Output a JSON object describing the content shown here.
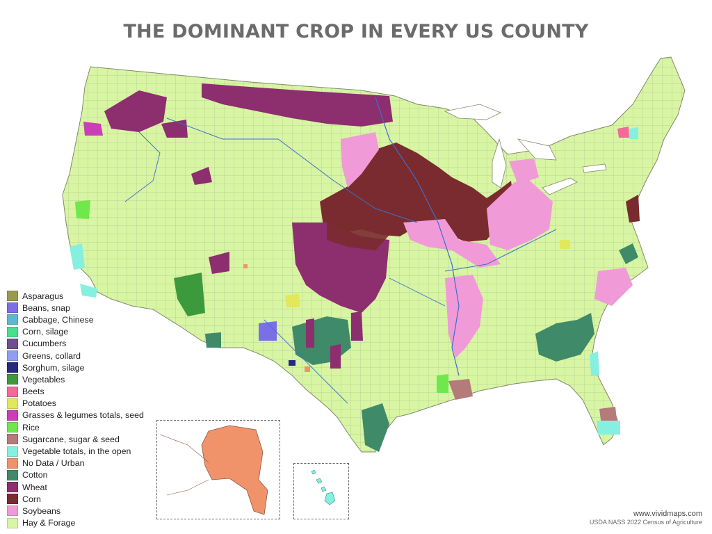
{
  "title": "THE DOMINANT CROP IN EVERY US COUNTY",
  "credits": {
    "site": "www.vividmaps.com",
    "source": "USDA NASS 2022 Census of Agriculture"
  },
  "legend": [
    {
      "label": "Asparagus",
      "color": "#9a9a4e"
    },
    {
      "label": "Beans, snap",
      "color": "#7b6fe6"
    },
    {
      "label": "Cabbage, Chinese",
      "color": "#5ab8cf"
    },
    {
      "label": "Corn, silage",
      "color": "#47e08a"
    },
    {
      "label": "Cucumbers",
      "color": "#6f4f8f"
    },
    {
      "label": "Greens, collard",
      "color": "#8f9ef0"
    },
    {
      "label": "Sorghum, silage",
      "color": "#26297f"
    },
    {
      "label": "Vegetables",
      "color": "#3c9a3c"
    },
    {
      "label": "Beets",
      "color": "#f06b97"
    },
    {
      "label": "Potatoes",
      "color": "#e3e85a"
    },
    {
      "label": "Grasses & legumes totals, seed",
      "color": "#cc3db8"
    },
    {
      "label": "Rice",
      "color": "#6ee84a"
    },
    {
      "label": "Sugarcane, sugar & seed",
      "color": "#b57a7a"
    },
    {
      "label": "Vegetable totals, in the open",
      "color": "#86f0e0"
    },
    {
      "label": "No Data / Urban",
      "color": "#f0936b"
    },
    {
      "label": "Cotton",
      "color": "#3f8a68"
    },
    {
      "label": "Wheat",
      "color": "#8d2e6e"
    },
    {
      "label": "Corn",
      "color": "#7a2b2f"
    },
    {
      "label": "Soybeans",
      "color": "#f09ad8"
    },
    {
      "label": "Hay & Forage",
      "color": "#d7f5a3"
    }
  ]
}
